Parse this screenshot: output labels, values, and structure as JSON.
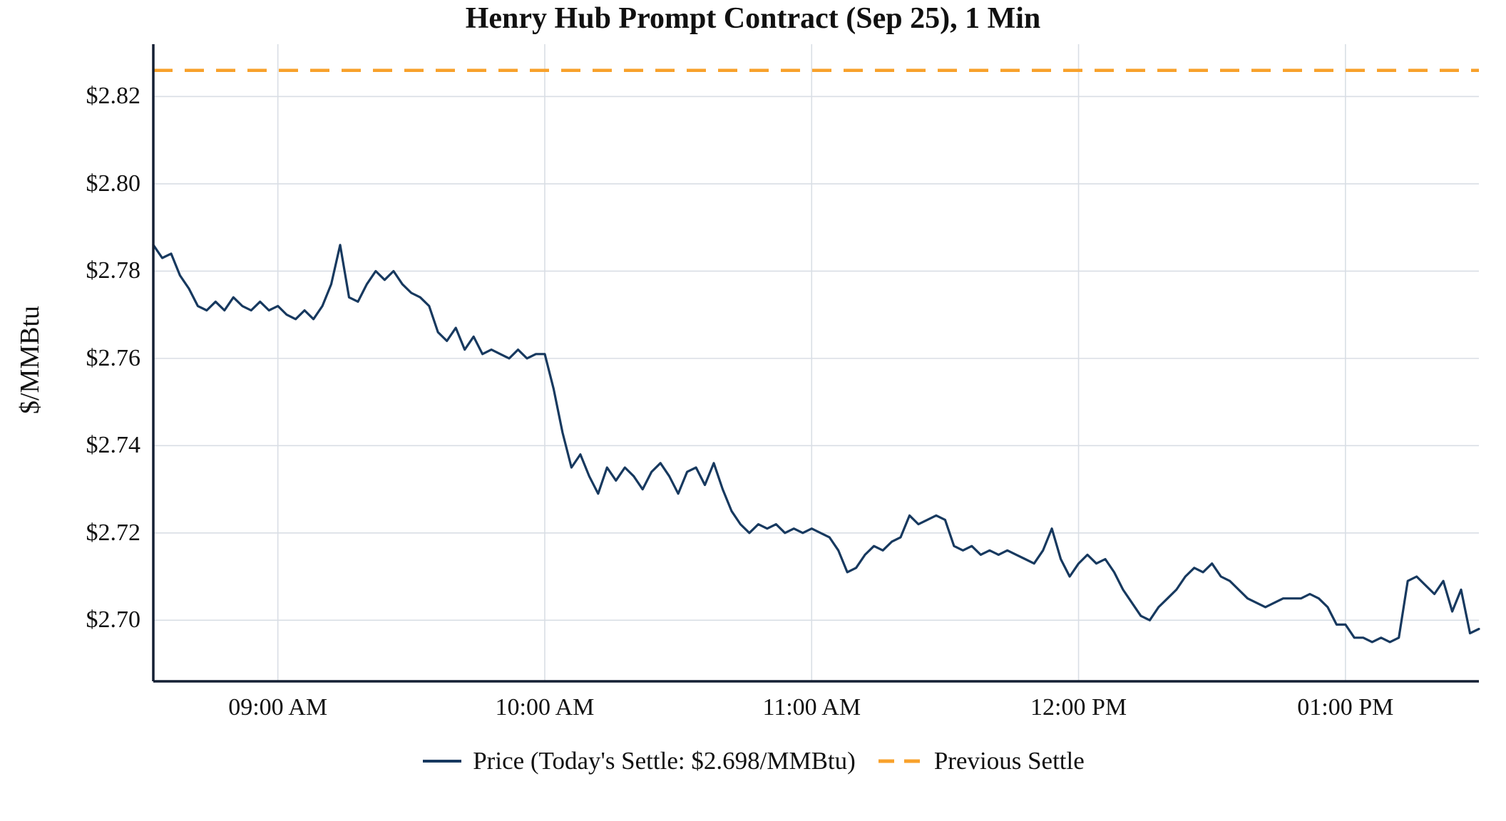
{
  "chart_data": {
    "type": "line",
    "title": "Henry Hub Prompt Contract (Sep 25), 1 Min",
    "ylabel": "$/MMBtu",
    "xlabel": "",
    "grid": true,
    "legend_position": "bottom",
    "x_unit": "minutes-since-midnight",
    "xlim_minutes": [
      512,
      810
    ],
    "ylim": [
      2.686,
      2.832
    ],
    "x_ticks": [
      {
        "minute": 540,
        "label": "09:00 AM"
      },
      {
        "minute": 600,
        "label": "10:00 AM"
      },
      {
        "minute": 660,
        "label": "11:00 AM"
      },
      {
        "minute": 720,
        "label": "12:00 PM"
      },
      {
        "minute": 780,
        "label": "01:00 PM"
      }
    ],
    "y_ticks": [
      {
        "value": 2.7,
        "label": "$2.70"
      },
      {
        "value": 2.72,
        "label": "$2.72"
      },
      {
        "value": 2.74,
        "label": "$2.74"
      },
      {
        "value": 2.76,
        "label": "$2.76"
      },
      {
        "value": 2.78,
        "label": "$2.78"
      },
      {
        "value": 2.8,
        "label": "$2.80"
      },
      {
        "value": 2.82,
        "label": "$2.82"
      }
    ],
    "previous_settle": 2.826,
    "today_settle": 2.698,
    "series": [
      {
        "name": "Price",
        "start_minute": 512,
        "step_minutes": 2,
        "values": [
          2.786,
          2.783,
          2.784,
          2.779,
          2.776,
          2.772,
          2.771,
          2.773,
          2.771,
          2.774,
          2.772,
          2.771,
          2.773,
          2.771,
          2.772,
          2.77,
          2.769,
          2.771,
          2.769,
          2.772,
          2.777,
          2.786,
          2.774,
          2.773,
          2.777,
          2.78,
          2.778,
          2.78,
          2.777,
          2.775,
          2.774,
          2.772,
          2.766,
          2.764,
          2.767,
          2.762,
          2.765,
          2.761,
          2.762,
          2.761,
          2.76,
          2.762,
          2.76,
          2.761,
          2.761,
          2.753,
          2.743,
          2.735,
          2.738,
          2.733,
          2.729,
          2.735,
          2.732,
          2.735,
          2.733,
          2.73,
          2.734,
          2.736,
          2.733,
          2.729,
          2.734,
          2.735,
          2.731,
          2.736,
          2.73,
          2.725,
          2.722,
          2.72,
          2.722,
          2.721,
          2.722,
          2.72,
          2.721,
          2.72,
          2.721,
          2.72,
          2.719,
          2.716,
          2.711,
          2.712,
          2.715,
          2.717,
          2.716,
          2.718,
          2.719,
          2.724,
          2.722,
          2.723,
          2.724,
          2.723,
          2.717,
          2.716,
          2.717,
          2.715,
          2.716,
          2.715,
          2.716,
          2.715,
          2.714,
          2.713,
          2.716,
          2.721,
          2.714,
          2.71,
          2.713,
          2.715,
          2.713,
          2.714,
          2.711,
          2.707,
          2.704,
          2.701,
          2.7,
          2.703,
          2.705,
          2.707,
          2.71,
          2.712,
          2.711,
          2.713,
          2.71,
          2.709,
          2.707,
          2.705,
          2.704,
          2.703,
          2.704,
          2.705,
          2.705,
          2.705,
          2.706,
          2.705,
          2.703,
          2.699,
          2.699,
          2.696,
          2.696,
          2.695,
          2.696,
          2.695,
          2.696,
          2.709,
          2.71,
          2.708,
          2.706,
          2.709,
          2.702,
          2.707,
          2.697,
          2.698
        ]
      }
    ],
    "legend": [
      {
        "label": "Price (Today's Settle: $2.698/MMBtu)",
        "style": "solid",
        "color_key": "price"
      },
      {
        "label": "Previous Settle",
        "style": "dashed",
        "color_key": "previous_settle"
      }
    ],
    "colors": {
      "price": "#17395f",
      "previous_settle": "#f8a12b",
      "axis": "#141f33",
      "grid": "#d9dee5",
      "text": "#111111"
    }
  }
}
